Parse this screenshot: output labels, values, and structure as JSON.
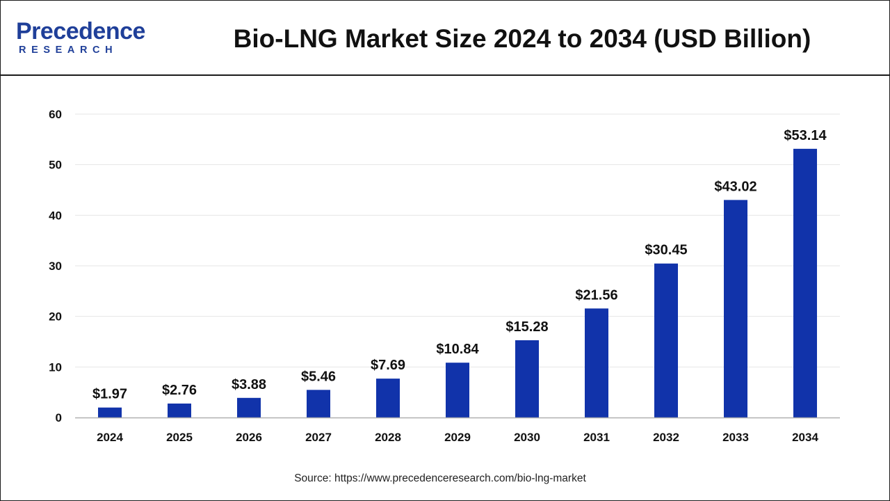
{
  "brand": {
    "name": "Precedence",
    "sub": "RESEARCH",
    "color": "#1f3f99"
  },
  "title": "Bio-LNG Market Size 2024 to 2034 (USD Billion)",
  "source": "Source: https://www.precedenceresearch.com/bio-lng-market",
  "colors": {
    "bar": "#1133aa",
    "grid": "#e6e6e6",
    "axis": "#b0b0b0",
    "text": "#111111"
  },
  "chart_data": {
    "type": "bar",
    "categories": [
      "2024",
      "2025",
      "2026",
      "2027",
      "2028",
      "2029",
      "2030",
      "2031",
      "2032",
      "2033",
      "2034"
    ],
    "values": [
      1.97,
      2.76,
      3.88,
      5.46,
      7.69,
      10.84,
      15.28,
      21.56,
      30.45,
      43.02,
      53.14
    ],
    "labels": [
      "$1.97",
      "$2.76",
      "$3.88",
      "$5.46",
      "$7.69",
      "$10.84",
      "$15.28",
      "$21.56",
      "$30.45",
      "$43.02",
      "$53.14"
    ],
    "ylim": [
      0,
      60
    ],
    "yticks": [
      "0",
      "10",
      "20",
      "30",
      "40",
      "50",
      "60"
    ],
    "grid": true,
    "legend": "none",
    "xlabel": "",
    "ylabel": ""
  }
}
